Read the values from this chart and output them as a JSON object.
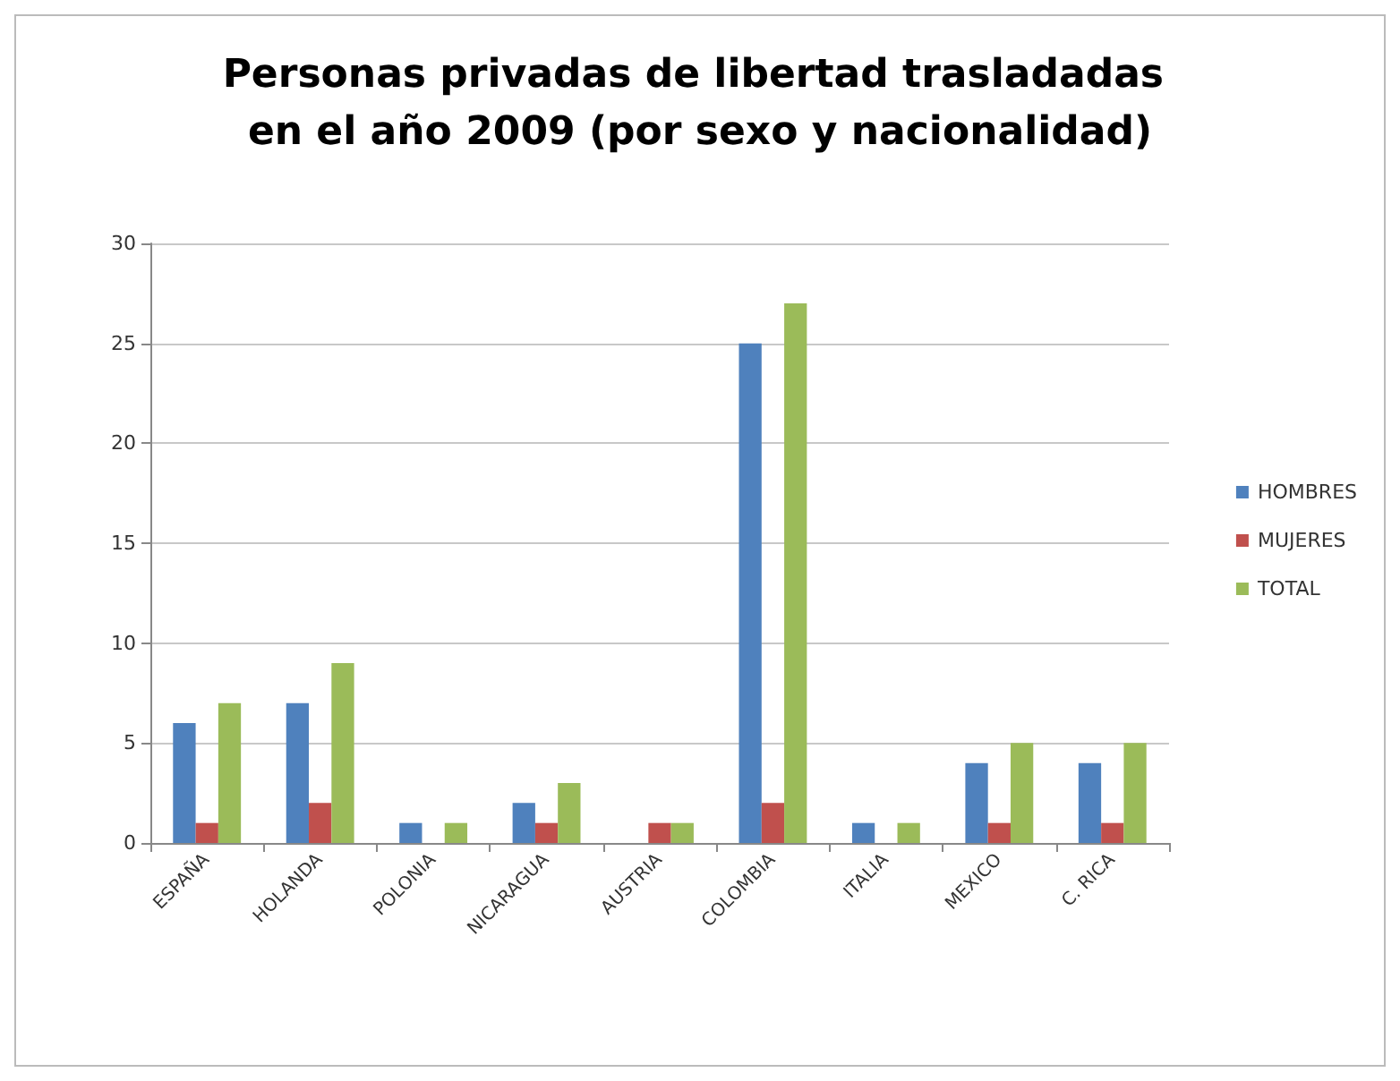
{
  "chart_data": {
    "type": "bar",
    "title": "Personas privadas de libertad trasladadas en el año 2009 (por sexo y nacionalidad)",
    "categories": [
      "ESPAÑA",
      "HOLANDA",
      "POLONIA",
      "NICARAGUA",
      "AUSTRIA",
      "COLOMBIA",
      "ITALIA",
      "MEXICO",
      "C. RICA"
    ],
    "series": [
      {
        "name": "HOMBRES",
        "color": "#4f81bd",
        "values": [
          6,
          7,
          1,
          2,
          0,
          25,
          1,
          4,
          4
        ]
      },
      {
        "name": "MUJERES",
        "color": "#c0504d",
        "values": [
          1,
          2,
          0,
          1,
          1,
          2,
          0,
          1,
          1
        ]
      },
      {
        "name": "TOTAL",
        "color": "#9bbb59",
        "values": [
          7,
          9,
          1,
          3,
          1,
          27,
          1,
          5,
          5
        ]
      }
    ],
    "ylim": [
      0,
      30
    ],
    "yticks": [
      0,
      5,
      10,
      15,
      20,
      25,
      30
    ],
    "grid": "y",
    "legend": "right"
  }
}
